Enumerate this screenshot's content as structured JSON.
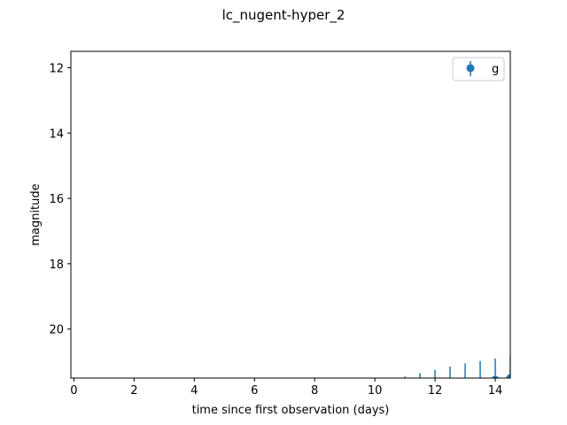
{
  "chart_data": {
    "type": "scatter",
    "title": "lc_nugent-hyper_2",
    "xlabel": "time since first observation (days)",
    "ylabel": "magnitude",
    "xlim": [
      -0.1,
      14.5
    ],
    "ylim": [
      21.5,
      11.5
    ],
    "y_inverted": true,
    "xticks": [
      0,
      2,
      4,
      6,
      8,
      10,
      12,
      14
    ],
    "xtick_labels": [
      "0",
      "2",
      "4",
      "6",
      "8",
      "10",
      "12",
      "14"
    ],
    "yticks": [
      12,
      14,
      16,
      18,
      20
    ],
    "ytick_labels": [
      "12",
      "14",
      "16",
      "18",
      "20"
    ],
    "grid": false,
    "legend_position": "upper-right",
    "series": [
      {
        "name": "g",
        "color": "#1f77b4",
        "marker": "circle",
        "points": [
          {
            "x": 11.0,
            "y": 21.85,
            "yerr": 0.4
          },
          {
            "x": 11.5,
            "y": 21.8,
            "yerr": 0.45
          },
          {
            "x": 12.0,
            "y": 21.75,
            "yerr": 0.5
          },
          {
            "x": 12.5,
            "y": 21.7,
            "yerr": 0.55
          },
          {
            "x": 13.0,
            "y": 21.65,
            "yerr": 0.6
          },
          {
            "x": 13.5,
            "y": 21.6,
            "yerr": 0.62
          },
          {
            "x": 14.0,
            "y": 21.55,
            "yerr": 0.65
          },
          {
            "x": 14.5,
            "y": 21.5,
            "yerr": 0.7
          }
        ]
      }
    ]
  }
}
